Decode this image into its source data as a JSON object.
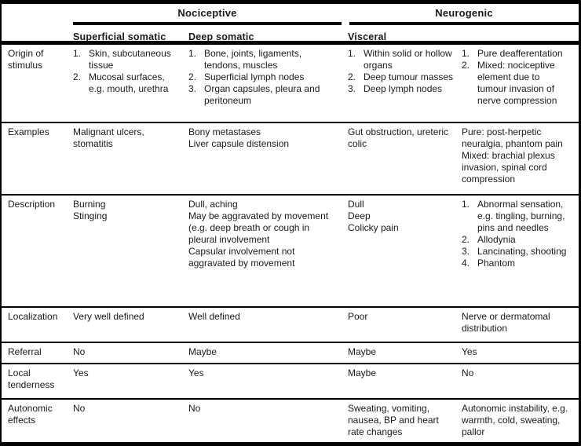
{
  "colors": {
    "border": "#000000",
    "text": "#1a1a1a",
    "background": "#ffffff"
  },
  "table": {
    "group_headers": [
      {
        "label": "Nociceptive"
      },
      {
        "label": "Neurogenic"
      }
    ],
    "column_headers": [
      "Superficial somatic",
      "Deep somatic",
      "Visceral",
      ""
    ],
    "rows": [
      {
        "label": "Origin of stimulus",
        "cells": [
          {
            "list": [
              "Skin, subcutaneous tissue",
              "Mucosal surfaces, e.g. mouth, urethra"
            ]
          },
          {
            "list": [
              "Bone, joints, ligaments, tendons, muscles",
              "Superficial lymph nodes",
              "Organ capsules, pleura and peritoneum"
            ]
          },
          {
            "list": [
              "Within solid or hollow organs",
              "Deep tumour masses",
              "Deep lymph nodes"
            ]
          },
          {
            "list": [
              "Pure deafferentation",
              "Mixed: nociceptive element due to tumour invasion of nerve compression"
            ]
          }
        ]
      },
      {
        "label": "Examples",
        "cells": [
          {
            "lines": [
              "Malignant ulcers, stomatitis"
            ]
          },
          {
            "lines": [
              "Bony metastases",
              "Liver capsule distension"
            ]
          },
          {
            "lines": [
              "Gut obstruction, ureteric colic"
            ]
          },
          {
            "lines": [
              "Pure: post-herpetic neuralgia, phantom pain",
              "Mixed: brachial plexus invasion, spinal cord compression"
            ]
          }
        ]
      },
      {
        "label": "Description",
        "cells": [
          {
            "lines": [
              "Burning",
              "Stinging"
            ]
          },
          {
            "lines": [
              "Dull, aching",
              "May be aggravated by movement (e.g. deep breath or cough in pleural involvement",
              "Capsular involvement not aggravated by movement"
            ]
          },
          {
            "lines": [
              "Dull",
              "Deep",
              "Colicky pain"
            ]
          },
          {
            "list": [
              "Abnormal sensation, e.g. tingling, burning, pins and needles",
              "Allodynia",
              "Lancinating, shooting",
              "Phantom"
            ]
          }
        ]
      },
      {
        "label": "Localization",
        "cells": [
          {
            "lines": [
              "Very well defined"
            ]
          },
          {
            "lines": [
              "Well defined"
            ]
          },
          {
            "lines": [
              "Poor"
            ]
          },
          {
            "lines": [
              "Nerve or dermatomal distribution"
            ]
          }
        ]
      },
      {
        "label": "Referral",
        "cells": [
          {
            "lines": [
              "No"
            ]
          },
          {
            "lines": [
              "Maybe"
            ]
          },
          {
            "lines": [
              "Maybe"
            ]
          },
          {
            "lines": [
              "Yes"
            ]
          }
        ]
      },
      {
        "label": "Local tenderness",
        "cells": [
          {
            "lines": [
              "Yes"
            ]
          },
          {
            "lines": [
              "Yes"
            ]
          },
          {
            "lines": [
              "Maybe"
            ]
          },
          {
            "lines": [
              "No"
            ]
          }
        ]
      },
      {
        "label": "Autonomic effects",
        "cells": [
          {
            "lines": [
              "No"
            ]
          },
          {
            "lines": [
              "No"
            ]
          },
          {
            "lines": [
              "Sweating, vomiting, nausea, BP and heart rate changes"
            ]
          },
          {
            "lines": [
              "Autonomic instability, e.g. warmth, cold, sweating, pallor"
            ]
          }
        ]
      }
    ]
  }
}
